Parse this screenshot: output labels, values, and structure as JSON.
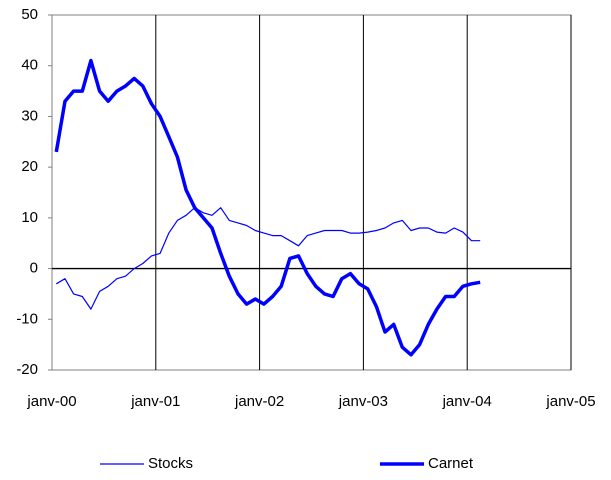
{
  "chart_data": {
    "type": "line",
    "x": [
      0.5,
      1.5,
      2.5,
      3.5,
      4.5,
      5.5,
      6.5,
      7.5,
      8.5,
      9.5,
      10.5,
      11.5,
      12.5,
      13.5,
      14.5,
      15.5,
      16.5,
      17.5,
      18.5,
      19.5,
      20.5,
      21.5,
      22.5,
      23.5,
      24.5,
      25.5,
      26.5,
      27.5,
      28.5,
      29.5,
      30.5,
      31.5,
      32.5,
      33.5,
      34.5,
      35.5,
      36.5,
      37.5,
      38.5,
      39.5,
      40.5,
      41.5,
      42.5,
      43.5,
      44.5,
      45.5,
      46.5,
      47.5,
      48.5,
      49.5
    ],
    "series": [
      {
        "name": "Stocks",
        "color": "#0000ff",
        "width": 1.2,
        "values": [
          -3,
          -2,
          -5,
          -5.5,
          -8,
          -4.5,
          -3.5,
          -2,
          -1.5,
          0,
          1,
          2.5,
          3,
          7,
          9.5,
          10.5,
          12,
          11,
          10.5,
          12,
          9.5,
          9,
          8.5,
          7.5,
          7,
          6.5,
          6.5,
          5.5,
          4.5,
          6.5,
          7,
          7.5,
          7.5,
          7.5,
          7,
          7,
          7.2,
          7.5,
          8,
          9,
          9.5,
          7.5,
          8,
          8,
          7.2,
          7,
          8,
          7.2,
          5.5,
          5.5
        ]
      },
      {
        "name": "Carnet",
        "color": "#0000ff",
        "width": 3.5,
        "values": [
          23,
          33,
          35,
          35,
          41,
          35,
          33,
          35,
          36,
          37.5,
          36,
          32.5,
          30,
          26,
          22,
          15.5,
          12,
          10,
          8,
          3,
          -1.5,
          -5,
          -7,
          -6,
          -7,
          -5.5,
          -3.5,
          2,
          2.5,
          -1,
          -3.5,
          -5,
          -5.5,
          -2,
          -1,
          -3,
          -4,
          -7.5,
          -12.5,
          -11,
          -15.5,
          -17,
          -15,
          -11,
          -8,
          -5.5,
          -5.5,
          -3.5,
          -3,
          -2.7
        ]
      }
    ],
    "xlim": [
      0,
      60
    ],
    "xticks": [
      {
        "value": 0,
        "label": "janv-00"
      },
      {
        "value": 12,
        "label": "janv-01"
      },
      {
        "value": 24,
        "label": "janv-02"
      },
      {
        "value": 36,
        "label": "janv-03"
      },
      {
        "value": 48,
        "label": "janv-04"
      },
      {
        "value": 60,
        "label": "janv-05"
      }
    ],
    "ylim": [
      -20,
      50
    ],
    "yticks": [
      -20,
      -10,
      0,
      10,
      20,
      30,
      40,
      50
    ]
  }
}
